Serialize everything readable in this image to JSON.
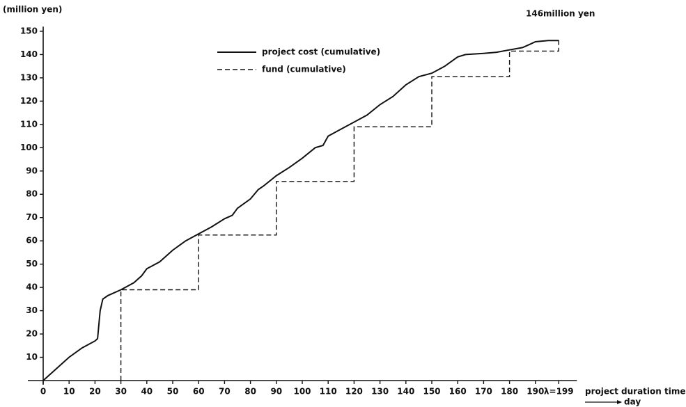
{
  "chart_data": {
    "type": "line",
    "y_label": "(million yen)",
    "x_label": "project duration time",
    "x_unit": "day",
    "annotation": "146million yen",
    "xlim": [
      0,
      206
    ],
    "ylim": [
      0,
      152
    ],
    "xticks": [
      0,
      10,
      20,
      30,
      40,
      50,
      60,
      70,
      80,
      90,
      100,
      110,
      120,
      130,
      140,
      150,
      160,
      170,
      180,
      190,
      {
        "value": 199,
        "label": "λ=199"
      }
    ],
    "yticks": [
      10,
      20,
      30,
      40,
      50,
      60,
      70,
      80,
      90,
      100,
      110,
      120,
      130,
      140,
      150
    ],
    "series": [
      {
        "name": "project cost (cumulative)",
        "color": "#111111",
        "linestyle": "solid",
        "x": [
          0,
          5,
          10,
          15,
          20,
          21,
          22,
          23,
          25,
          30,
          35,
          38,
          40,
          45,
          50,
          55,
          60,
          65,
          70,
          73,
          75,
          80,
          83,
          85,
          90,
          95,
          100,
          105,
          108,
          110,
          115,
          120,
          125,
          130,
          135,
          140,
          145,
          150,
          155,
          160,
          163,
          170,
          175,
          180,
          185,
          188,
          190,
          195,
          199
        ],
        "values": [
          0,
          5,
          10,
          14,
          17,
          18,
          30,
          35,
          36.5,
          39,
          42,
          45,
          48,
          51,
          56,
          60,
          63,
          66,
          69.5,
          71,
          74,
          78,
          82,
          83.5,
          88,
          91.5,
          95.5,
          100,
          101,
          105,
          108,
          111,
          114,
          118.5,
          122,
          127,
          130.5,
          132,
          135,
          139,
          140,
          140.5,
          141,
          142,
          143,
          144.5,
          145.5,
          146,
          146
        ]
      },
      {
        "name": "fund  (cumulative)",
        "color": "#111111",
        "linestyle": "dashed",
        "x": [
          30,
          30,
          60,
          60,
          90,
          90,
          120,
          120,
          150,
          150,
          180,
          180,
          199,
          199
        ],
        "values": [
          0,
          39,
          39,
          62.5,
          62.5,
          85.5,
          85.5,
          109,
          109,
          130.5,
          130.5,
          141.5,
          141.5,
          146
        ]
      }
    ]
  }
}
